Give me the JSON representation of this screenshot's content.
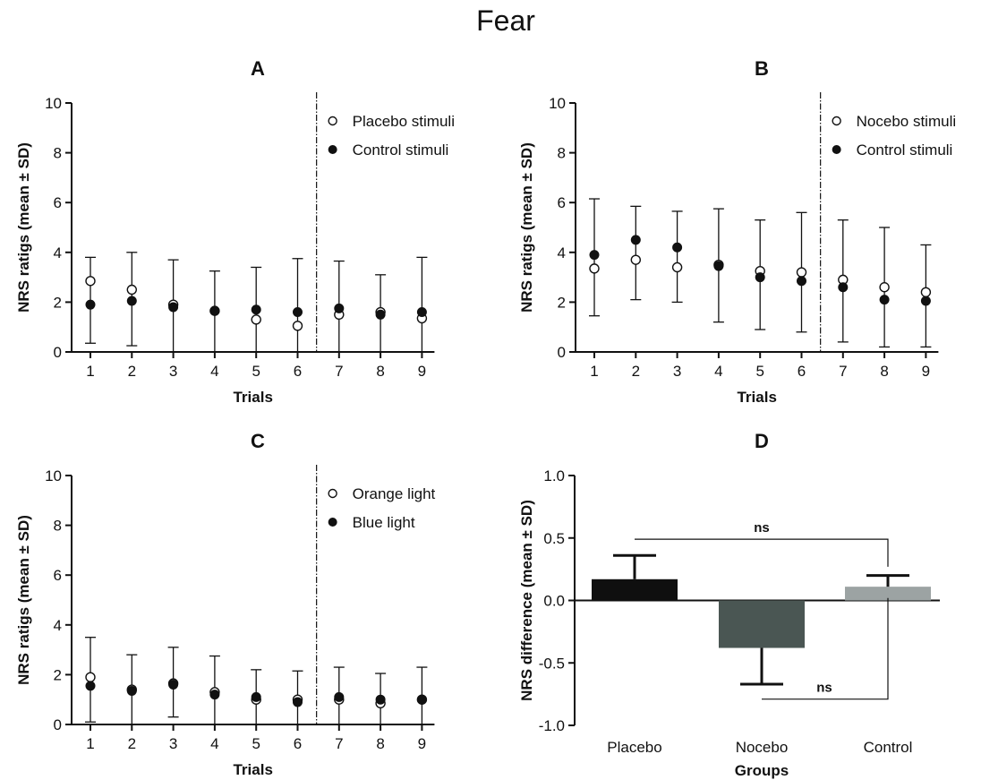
{
  "figure_title": "Fear",
  "chart_data": [
    {
      "panel": "A",
      "type": "scatter",
      "title": "A",
      "xlabel": "Trials",
      "ylabel": "NRS ratigs (mean ± SD)",
      "xlim": [
        0.5,
        9.6
      ],
      "ylim": [
        0,
        10
      ],
      "y_ticks": [
        0,
        2,
        4,
        6,
        8,
        10
      ],
      "x_ticks": [
        1,
        2,
        3,
        4,
        5,
        6,
        7,
        8,
        9
      ],
      "divider_x": 6.5,
      "legend_position": "top-right",
      "grid": false,
      "series": [
        {
          "name": "Placebo stimuli",
          "marker": "open-circle",
          "x": [
            1,
            2,
            3,
            4,
            5,
            6,
            7,
            8,
            9
          ],
          "values": [
            2.85,
            2.5,
            1.9,
            1.65,
            1.3,
            1.05,
            1.5,
            1.6,
            1.35
          ]
        },
        {
          "name": "Control stimuli",
          "marker": "filled-circle",
          "x": [
            1,
            2,
            3,
            4,
            5,
            6,
            7,
            8,
            9
          ],
          "values": [
            1.9,
            2.05,
            1.8,
            1.65,
            1.7,
            1.6,
            1.75,
            1.5,
            1.6
          ]
        }
      ],
      "error_bars": [
        {
          "x": 1,
          "low": 0.35,
          "high": 3.8
        },
        {
          "x": 2,
          "low": 0.25,
          "high": 4.0
        },
        {
          "x": 3,
          "low": 0,
          "high": 3.7
        },
        {
          "x": 4,
          "low": 0,
          "high": 3.25
        },
        {
          "x": 5,
          "low": 0,
          "high": 3.4
        },
        {
          "x": 6,
          "low": 0,
          "high": 3.75
        },
        {
          "x": 7,
          "low": 0,
          "high": 3.65
        },
        {
          "x": 8,
          "low": 0,
          "high": 3.1
        },
        {
          "x": 9,
          "low": 0,
          "high": 3.8
        }
      ]
    },
    {
      "panel": "B",
      "type": "scatter",
      "title": "B",
      "xlabel": "Trials",
      "ylabel": "NRS ratigs (mean ± SD)",
      "xlim": [
        0.5,
        9.6
      ],
      "ylim": [
        0,
        10
      ],
      "y_ticks": [
        0,
        2,
        4,
        6,
        8,
        10
      ],
      "x_ticks": [
        1,
        2,
        3,
        4,
        5,
        6,
        7,
        8,
        9
      ],
      "divider_x": 6.5,
      "legend_position": "top-right",
      "grid": false,
      "series": [
        {
          "name": "Nocebo stimuli",
          "marker": "open-circle",
          "x": [
            1,
            2,
            3,
            4,
            5,
            6,
            7,
            8,
            9
          ],
          "values": [
            3.35,
            3.7,
            3.4,
            3.5,
            3.25,
            3.2,
            2.9,
            2.6,
            2.4
          ]
        },
        {
          "name": "Control stimuli",
          "marker": "filled-circle",
          "x": [
            1,
            2,
            3,
            4,
            5,
            6,
            7,
            8,
            9
          ],
          "values": [
            3.9,
            4.5,
            4.2,
            3.45,
            3.0,
            2.85,
            2.6,
            2.1,
            2.05
          ]
        }
      ],
      "error_bars": [
        {
          "x": 1,
          "low": 1.45,
          "high": 6.15
        },
        {
          "x": 2,
          "low": 2.1,
          "high": 5.85
        },
        {
          "x": 3,
          "low": 2.0,
          "high": 5.65
        },
        {
          "x": 4,
          "low": 1.2,
          "high": 5.75
        },
        {
          "x": 5,
          "low": 0.9,
          "high": 5.3
        },
        {
          "x": 6,
          "low": 0.8,
          "high": 5.6
        },
        {
          "x": 7,
          "low": 0.4,
          "high": 5.3
        },
        {
          "x": 8,
          "low": 0.2,
          "high": 5.0
        },
        {
          "x": 9,
          "low": 0.2,
          "high": 4.3
        }
      ]
    },
    {
      "panel": "C",
      "type": "scatter",
      "title": "C",
      "xlabel": "Trials",
      "ylabel": "NRS ratigs (mean ± SD)",
      "xlim": [
        0.5,
        9.6
      ],
      "ylim": [
        0,
        10
      ],
      "y_ticks": [
        0,
        2,
        4,
        6,
        8,
        10
      ],
      "x_ticks": [
        1,
        2,
        3,
        4,
        5,
        6,
        7,
        8,
        9
      ],
      "divider_x": 6.5,
      "legend_position": "top-right",
      "grid": false,
      "series": [
        {
          "name": "Orange light",
          "marker": "open-circle",
          "x": [
            1,
            2,
            3,
            4,
            5,
            6,
            7,
            8,
            9
          ],
          "values": [
            1.9,
            1.4,
            1.65,
            1.3,
            1.0,
            1.0,
            1.0,
            0.85,
            1.0
          ]
        },
        {
          "name": "Blue light",
          "marker": "filled-circle",
          "x": [
            1,
            2,
            3,
            4,
            5,
            6,
            7,
            8,
            9
          ],
          "values": [
            1.55,
            1.35,
            1.6,
            1.2,
            1.1,
            0.9,
            1.1,
            1.0,
            1.0
          ]
        }
      ],
      "error_bars": [
        {
          "x": 1,
          "low": 0.1,
          "high": 3.5
        },
        {
          "x": 2,
          "low": 0,
          "high": 2.8
        },
        {
          "x": 3,
          "low": 0.3,
          "high": 3.1
        },
        {
          "x": 4,
          "low": 0,
          "high": 2.75
        },
        {
          "x": 5,
          "low": 0,
          "high": 2.2
        },
        {
          "x": 6,
          "low": 0,
          "high": 2.15
        },
        {
          "x": 7,
          "low": 0,
          "high": 2.3
        },
        {
          "x": 8,
          "low": 0,
          "high": 2.05
        },
        {
          "x": 9,
          "low": 0,
          "high": 2.3
        }
      ]
    },
    {
      "panel": "D",
      "type": "bar",
      "title": "D",
      "xlabel": "Groups",
      "ylabel": "NRS difference (mean ± SD)",
      "ylim": [
        -1.0,
        1.0
      ],
      "y_ticks": [
        "-1.0",
        "-0.5",
        "0.0",
        "0.5",
        "1.0"
      ],
      "categories": [
        "Placebo",
        "Nocebo",
        "Control"
      ],
      "values": [
        0.17,
        -0.38,
        0.11
      ],
      "error_high": [
        0.36,
        -0.67,
        0.2
      ],
      "colors": [
        "#0f0f0f",
        "#4a5653",
        "#9ca3a3"
      ],
      "grid": false,
      "annotations": [
        {
          "text": "ns",
          "between": [
            "Placebo",
            "Control"
          ]
        },
        {
          "text": "ns",
          "between": [
            "Nocebo",
            "Control"
          ]
        }
      ]
    }
  ]
}
